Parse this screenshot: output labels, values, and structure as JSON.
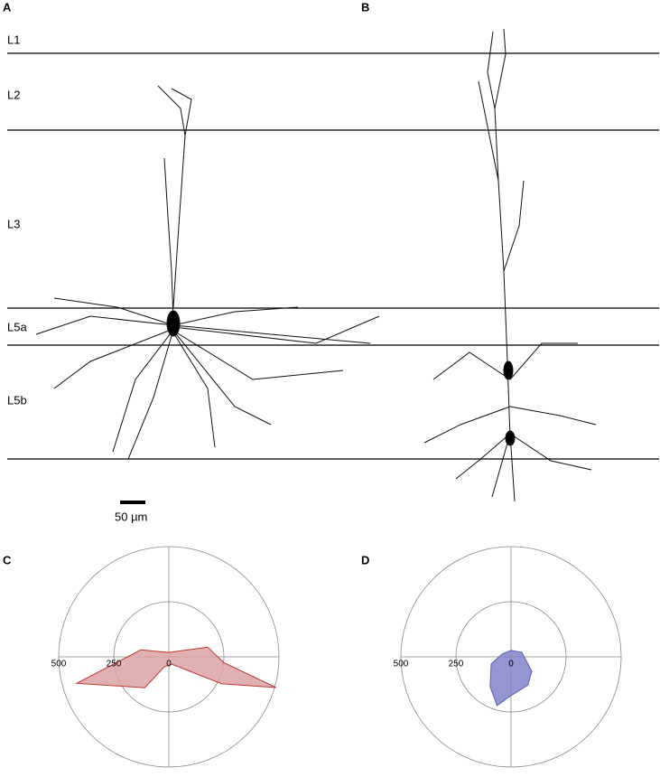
{
  "panels": {
    "a": "A",
    "b": "B",
    "c": "C",
    "d": "D"
  },
  "layers": [
    "L1",
    "L2",
    "L3",
    "L5a",
    "L5b"
  ],
  "scale_bar": "50 µm",
  "chart_data": [
    {
      "type": "polar",
      "rlim": [
        0,
        500
      ],
      "rticks": [
        0,
        250,
        500
      ],
      "color": "#d9a3a6",
      "edge": "#c0392b",
      "angles": [
        14,
        354,
        344,
        333,
        291,
        246,
        232,
        196,
        166,
        90
      ],
      "values": [
        182,
        251,
        506,
        268,
        35,
        49,
        178,
        435,
        131,
        20
      ]
    },
    {
      "type": "polar",
      "rlim": [
        0,
        500
      ],
      "rticks": [
        0,
        250,
        500
      ],
      "color": "#8084c8",
      "edge": "#5b5fae",
      "angles": [
        90,
        23,
        325,
        301,
        270,
        254,
        235,
        200,
        163
      ],
      "values": [
        29,
        53,
        115,
        149,
        176,
        230,
        165,
        96,
        43
      ]
    }
  ]
}
